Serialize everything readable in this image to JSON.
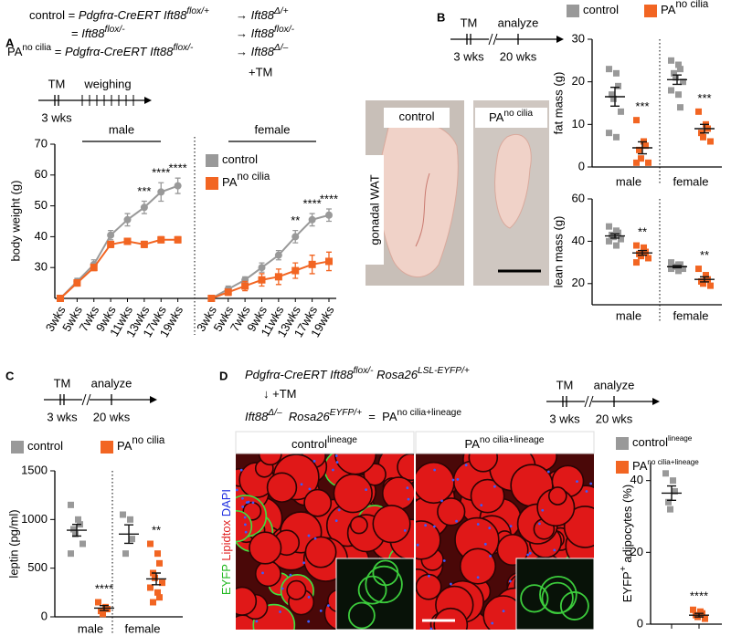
{
  "panel_labels": [
    "A",
    "B",
    "C",
    "D"
  ],
  "genetics_a": {
    "rows": [
      {
        "left": [
          {
            "text": "control"
          },
          {
            "text": " = "
          },
          {
            "text": "Pdgfrα-CreERT Ift88",
            "style": "italic"
          },
          {
            "text": "flox/+",
            "style": "italic sup"
          }
        ],
        "right": [
          {
            "text": "→ "
          },
          {
            "text": "Ift88",
            "style": "italic"
          },
          {
            "text": "Δ/+",
            "style": "italic sup"
          }
        ]
      },
      {
        "left": [
          {
            "text": "= "
          },
          {
            "text": "Ift88",
            "style": "italic"
          },
          {
            "text": "flox/-",
            "style": "italic sup"
          }
        ],
        "right": [
          {
            "text": "→ "
          },
          {
            "text": "Ift88",
            "style": "italic"
          },
          {
            "text": "flox/-",
            "style": "italic sup"
          }
        ]
      },
      {
        "left": [
          {
            "text": "PA"
          },
          {
            "text": "no cilia",
            "style": "sup"
          },
          {
            "text": " = "
          },
          {
            "text": "Pdgfrα-CreERT Ift88",
            "style": "italic"
          },
          {
            "text": "flox/-",
            "style": "italic sup"
          }
        ],
        "right": [
          {
            "text": "→ "
          },
          {
            "text": "Ift88",
            "style": "italic"
          },
          {
            "text": "Δ/–",
            "style": "italic sup"
          }
        ]
      }
    ],
    "treatment": "+TM"
  },
  "timelines": [
    {
      "tm": "TM",
      "event": "weighing",
      "start": "3 wks"
    },
    {
      "tm": "TM",
      "event": "analyze",
      "start": "3 wks",
      "end": "20 wks"
    },
    {
      "tm": "TM",
      "event": "analyze",
      "start": "3 wks",
      "end": "20 wks"
    },
    {
      "tm": "TM",
      "event": "analyze",
      "start": "3 wks",
      "end": "20 wks"
    }
  ],
  "photos_b": {
    "control": [
      {
        "text": "control"
      }
    ],
    "pa": [
      {
        "text": "PA"
      },
      {
        "text": "no cilia",
        "style": "sup"
      }
    ],
    "tissue": "gonadal WAT"
  },
  "genetics_d": [
    [
      {
        "text": "Pdgfrα-CreERT Ift88",
        "style": "italic"
      },
      {
        "text": "flox/-",
        "style": "italic sup"
      },
      {
        "text": " Rosa26",
        "style": "italic"
      },
      {
        "text": "LSL-EYFP/+",
        "style": "italic sup"
      }
    ],
    [
      {
        "text": "↓ +TM"
      }
    ],
    [
      {
        "text": "Ift88",
        "style": "italic"
      },
      {
        "text": "Δ/–",
        "style": "italic sup"
      },
      {
        "text": "  Rosa26",
        "style": "italic"
      },
      {
        "text": "EYFP/+",
        "style": "italic sup"
      },
      {
        "text": "  =  PA"
      },
      {
        "text": "no cilia+lineage",
        "style": "sup"
      }
    ]
  ],
  "micro_d": {
    "control": [
      {
        "text": "control"
      },
      {
        "text": "lineage",
        "style": "sup"
      }
    ],
    "pa": [
      {
        "text": "PA"
      },
      {
        "text": "no cilia+lineage",
        "style": "sup"
      }
    ],
    "stains": [
      {
        "text": "EYFP ",
        "color": "#22b822"
      },
      {
        "text": "Lipidtox ",
        "color": "#e02020"
      },
      {
        "text": "DAPI",
        "color": "#2030e0"
      }
    ]
  },
  "chart_data": [
    {
      "type": "line",
      "ylabel": "body weight (g)",
      "categories": [
        "3wks",
        "5wks",
        "7wks",
        "9wks",
        "11wks",
        "13wks",
        "17wks",
        "19wks",
        null,
        "3wks",
        "5wks",
        "7wks",
        "9wks",
        "11wks",
        "13wks",
        "17wks",
        "19wks"
      ],
      "groups": [
        "male",
        "female"
      ],
      "series": [
        {
          "name": "control",
          "color": "#999999",
          "marker": "circle",
          "values": [
            20,
            25.5,
            31,
            40.5,
            45.5,
            49.5,
            54.5,
            56.5,
            null,
            20,
            23,
            26,
            30,
            34,
            40,
            45.5,
            47
          ],
          "errors": [
            0,
            1,
            1.5,
            1.5,
            2,
            2,
            3,
            2.5,
            null,
            0,
            1,
            1,
            1.5,
            1.5,
            2,
            2,
            2
          ]
        },
        {
          "name": "PA",
          "name_sup": "no cilia",
          "color": "#f26522",
          "marker": "square",
          "values": [
            20,
            25,
            30,
            37.5,
            38.5,
            37.5,
            39,
            39,
            null,
            20,
            22,
            24,
            26,
            27,
            29,
            31,
            32
          ],
          "errors": [
            0,
            1,
            1,
            1,
            1,
            1,
            1,
            1,
            null,
            0,
            1,
            1.5,
            2,
            2.5,
            2.5,
            3,
            3
          ]
        }
      ],
      "annotations": [
        null,
        null,
        null,
        null,
        null,
        "***",
        "****",
        "****",
        null,
        null,
        null,
        null,
        null,
        null,
        "**",
        "****",
        "****"
      ],
      "ylim": [
        20,
        70
      ],
      "yticks": [
        30,
        40,
        50,
        60,
        70
      ]
    },
    {
      "type": "strip",
      "ylabel": "fat mass (g)",
      "categories": [
        "male",
        "female"
      ],
      "series": [
        {
          "name": "control",
          "color": "#999999",
          "values": [
            [
              23,
              22,
              19,
              17,
              16,
              13,
              8,
              7
            ],
            [
              25,
              24,
              23,
              22,
              21,
              20,
              18,
              17,
              14
            ]
          ],
          "means": [
            16.5,
            20.5
          ],
          "sem": [
            2.2,
            1.1
          ]
        },
        {
          "name": "PA",
          "name_sup": "no cilia",
          "color": "#f26522",
          "values": [
            [
              11,
              6,
              5,
              4,
              2,
              1,
              1
            ],
            [
              13,
              10,
              9,
              8,
              7,
              6
            ]
          ],
          "means": [
            4.5,
            9
          ],
          "sem": [
            1.4,
            1
          ]
        }
      ],
      "annotations": [
        "***",
        "***"
      ],
      "ylim": [
        0,
        30
      ],
      "yticks": [
        0,
        10,
        20,
        30
      ]
    },
    {
      "type": "strip",
      "ylabel": "lean mass (g)",
      "categories": [
        "male",
        "female"
      ],
      "series": [
        {
          "color": "#999999",
          "values": [
            [
              47,
              45,
              44,
              43,
              42,
              41,
              40,
              38
            ],
            [
              30,
              29,
              29,
              28,
              28,
              27,
              27,
              26
            ]
          ],
          "means": [
            42.5,
            28
          ],
          "sem": [
            1,
            0.5
          ]
        },
        {
          "color": "#f26522",
          "values": [
            [
              38,
              37,
              35,
              34,
              33,
              32,
              30
            ],
            [
              27,
              24,
              22,
              21,
              20,
              19
            ]
          ],
          "means": [
            34.5,
            22
          ],
          "sem": [
            1.1,
            1.2
          ]
        }
      ],
      "annotations": [
        "**",
        "**"
      ],
      "ylim": [
        10,
        60
      ],
      "yticks": [
        20,
        40,
        60
      ]
    },
    {
      "type": "strip",
      "ylabel": "leptin (pg/ml)",
      "categories": [
        "male",
        "female"
      ],
      "series": [
        {
          "name": "control",
          "color": "#999999",
          "values": [
            [
              1150,
              1000,
              950,
              900,
              850,
              750,
              650
            ],
            [
              1050,
              1000,
              800,
              650
            ]
          ],
          "means": [
            890,
            850
          ],
          "sem": [
            60,
            95
          ]
        },
        {
          "name": "PA",
          "name_sup": "no cilia",
          "color": "#f26522",
          "values": [
            [
              150,
              100,
              80,
              60,
              30
            ],
            [
              750,
              650,
              550,
              450,
              400,
              350,
              300,
              250,
              200,
              150
            ]
          ],
          "means": [
            90,
            390
          ],
          "sem": [
            25,
            60
          ]
        }
      ],
      "annotations": [
        "****",
        "**"
      ],
      "ylim": [
        0,
        1500
      ],
      "yticks": [
        0,
        500,
        1000,
        1500
      ]
    },
    {
      "type": "strip",
      "ylabel": [
        {
          "text": "EYFP"
        },
        {
          "text": "+",
          "style": "sup"
        },
        {
          "text": " adipocytes (%)"
        }
      ],
      "categories": [
        null
      ],
      "series": [
        {
          "name": "control",
          "name_sup": "lineage",
          "color": "#999999",
          "values": [
            [
              42,
              40,
              37,
              34,
              32
            ]
          ],
          "means": [
            36.5
          ],
          "sem": [
            2
          ]
        },
        {
          "name": "PA",
          "name_sup": "no cilia+lineage",
          "color": "#f26522",
          "values": [
            [
              4,
              3.5,
              3,
              2.5,
              2,
              1.5
            ]
          ],
          "means": [
            2.5
          ],
          "sem": [
            0.5
          ]
        }
      ],
      "annotations": [
        "****"
      ],
      "ylim": [
        0,
        45
      ],
      "yticks": [
        0,
        20,
        40
      ]
    }
  ]
}
